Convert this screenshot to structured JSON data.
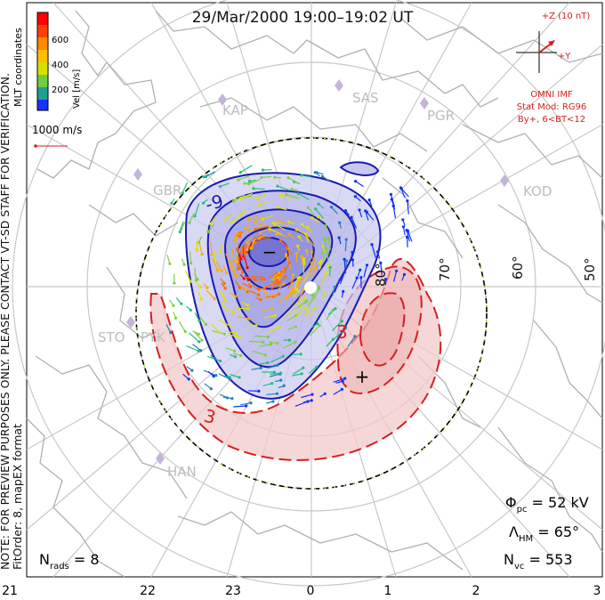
{
  "title": "29/Mar/2000  19:00–19:02  UT",
  "colorbar": {
    "label": "Vel [m/s]",
    "ticks": [
      "600",
      "400",
      "200"
    ],
    "colors": [
      "#ff0000",
      "#ff6a00",
      "#ffaa00",
      "#e0e000",
      "#80d040",
      "#20c080",
      "#2080c0",
      "#1030ff"
    ]
  },
  "mlt_coordinates": "MLT coordinates",
  "ref_vector_label": "1000 m/s",
  "notes": {
    "preview": "NOTE: FOR PREVIEW PURPOSES ONLY. PLEASE CONTACT VT-SD STAFF FOR VERIFICATION.",
    "fit": "FitOrder: 8, mapEX format"
  },
  "imf": {
    "z_label": "+Z (10 nT)",
    "y_label": "+Y",
    "source": "OMNI IMF",
    "stat_mod": "Stat Mod: RG96",
    "condition": "By+, 6<BT<12"
  },
  "stations": [
    "KAP",
    "SAS",
    "PGR",
    "GBR",
    "KOD",
    "STO",
    "PYK",
    "HAN"
  ],
  "latitude_labels": [
    "80°",
    "70°",
    "60°",
    "50°"
  ],
  "contour_labels": [
    "-9",
    "3",
    "3"
  ],
  "extrema": {
    "min_marker": "−",
    "max_marker": "+"
  },
  "stats": {
    "phi_pc": "Φpc = 52 kV",
    "lambda_hm": "ΛHM = 65°",
    "n_vc": "Nvc = 553",
    "n_rads": "Nrads = 8"
  },
  "bottom_axis": [
    "21",
    "22",
    "23",
    "0",
    "1",
    "2",
    "3"
  ],
  "colors": {
    "negative_cell": "#1a1ab0",
    "positive_cell": "#d81e1e",
    "grid": "#bdbdbd",
    "coast": "#b3b3b3"
  }
}
